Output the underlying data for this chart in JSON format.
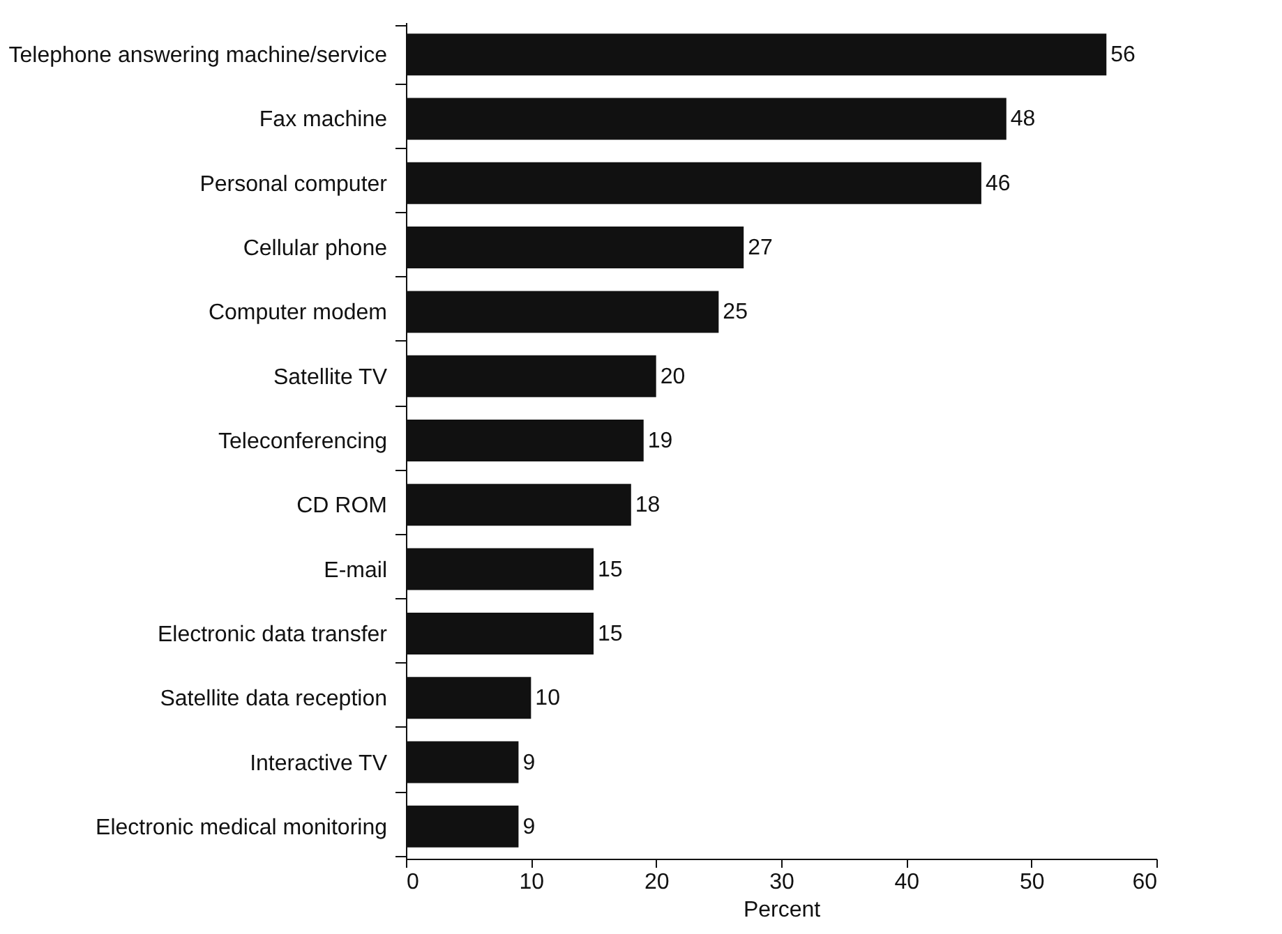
{
  "chart_data": {
    "type": "bar",
    "orientation": "horizontal",
    "xlabel": "Percent",
    "categories": [
      "Telephone answering machine/service",
      "Fax machine",
      "Personal computer",
      "Cellular phone",
      "Computer modem",
      "Satellite TV",
      "Teleconferencing",
      "CD ROM",
      "E-mail",
      "Electronic data transfer",
      "Satellite data reception",
      "Interactive TV",
      "Electronic medical monitoring"
    ],
    "values": [
      56,
      48,
      46,
      27,
      25,
      20,
      19,
      18,
      15,
      15,
      10,
      9,
      9
    ],
    "color": "#111111",
    "xlim": [
      0,
      60
    ],
    "xticks": [
      0,
      10,
      20,
      30,
      40,
      50,
      60
    ],
    "data_labels": true
  }
}
